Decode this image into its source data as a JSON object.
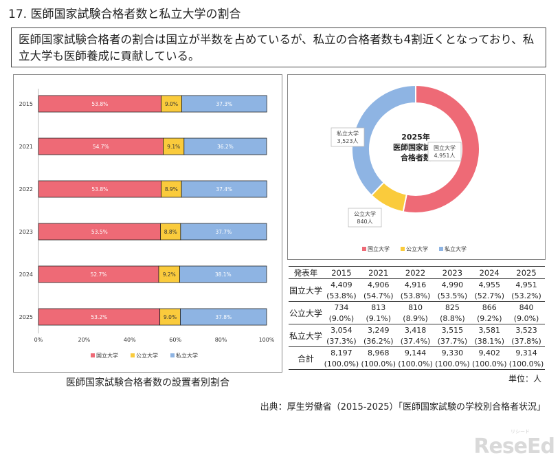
{
  "page": {
    "title": "17. 医師国家試験合格者数と私立大学の割合",
    "summary": "医師国家試験合格者の割合は国立が半数を占めているが、私立の合格者数も4割近くとなっており、私立大学も医師養成に貢献している。",
    "bar_caption": "医師国家試験合格者数の設置者別割合",
    "unit": "単位：人",
    "source": "出典：厚生労働省（2015-2025）「医師国家試験の学校別合格者状況」",
    "logo": "ReseEd",
    "logo_sub": "リシード"
  },
  "colors": {
    "national": "#EE6A76",
    "public": "#FACB3C",
    "private": "#8EB4E3"
  },
  "chart_data": [
    {
      "type": "bar",
      "orientation": "horizontal-stacked-100",
      "categories": [
        "2015",
        "2021",
        "2022",
        "2023",
        "2024",
        "2025"
      ],
      "series": [
        {
          "name": "国立大学",
          "values": [
            53.8,
            54.7,
            53.8,
            53.5,
            52.7,
            53.2
          ],
          "labels": [
            "53.8%",
            "54.7%",
            "53.8%",
            "53.5%",
            "52.7%",
            "53.2%"
          ]
        },
        {
          "name": "公立大学",
          "values": [
            9.0,
            9.1,
            8.9,
            8.8,
            9.2,
            9.0
          ],
          "labels": [
            "9.0%",
            "9.1%",
            "8.9%",
            "8.8%",
            "9.2%",
            "9.0%"
          ]
        },
        {
          "name": "私立大学",
          "values": [
            37.3,
            36.2,
            37.4,
            37.7,
            38.1,
            37.8
          ],
          "labels": [
            "37.3%",
            "36.2%",
            "37.4%",
            "37.7%",
            "38.1%",
            "37.8%"
          ]
        }
      ],
      "xlim": [
        0,
        100
      ],
      "xticks": [
        "0%",
        "20%",
        "40%",
        "60%",
        "80%",
        "100%"
      ],
      "legend": "bottom"
    },
    {
      "type": "pie",
      "variant": "donut",
      "center_text": [
        "2025年",
        "医師国家試験",
        "合格者数"
      ],
      "slices": [
        {
          "name": "国立大学",
          "value": 4951,
          "label": "4,951人"
        },
        {
          "name": "公立大学",
          "value": 840,
          "label": "840人"
        },
        {
          "name": "私立大学",
          "value": 3523,
          "label": "3,523人"
        }
      ],
      "legend": "bottom"
    }
  ],
  "table": {
    "header": [
      "発表年",
      "2015",
      "2021",
      "2022",
      "2023",
      "2024",
      "2025"
    ],
    "rows": [
      {
        "label": "国立大学",
        "values": [
          "4,409",
          "4,906",
          "4,916",
          "4,990",
          "4,955",
          "4,951"
        ],
        "pcts": [
          "(53.8%)",
          "(54.7%)",
          "(53.8%)",
          "(53.5%)",
          "(52.7%)",
          "(53.2%)"
        ]
      },
      {
        "label": "公立大学",
        "values": [
          "734",
          "813",
          "810",
          "825",
          "866",
          "840"
        ],
        "pcts": [
          "(9.0%)",
          "(9.1%)",
          "(8.9%)",
          "(8.8%)",
          "(9.2%)",
          "(9.0%)"
        ]
      },
      {
        "label": "私立大学",
        "values": [
          "3,054",
          "3,249",
          "3,418",
          "3,515",
          "3,581",
          "3,523"
        ],
        "pcts": [
          "(37.3%)",
          "(36.2%)",
          "(37.4%)",
          "(37.7%)",
          "(38.1%)",
          "(37.8%)"
        ]
      },
      {
        "label": "合計",
        "values": [
          "8,197",
          "8,968",
          "9,144",
          "9,330",
          "9,402",
          "9,314"
        ],
        "pcts": [
          "(100.0%)",
          "(100.0%)",
          "(100.0%)",
          "(100.0%)",
          "(100.0%)",
          "(100.0%)"
        ]
      }
    ]
  }
}
